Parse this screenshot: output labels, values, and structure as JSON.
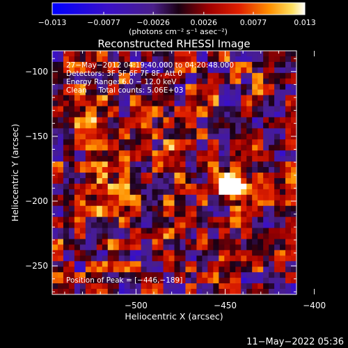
{
  "chart_data": {
    "type": "heatmap",
    "title": "Reconstructed RHESSI Image",
    "xlabel": "Heliocentric X (arcsec)",
    "ylabel": "Heliocentric Y (arcsec)",
    "xlim": [
      -547,
      -410
    ],
    "ylim": [
      -272,
      -84
    ],
    "x_ticks": [
      -500,
      -450,
      -400
    ],
    "x_tick_labels": [
      "−500",
      "−450",
      "−400"
    ],
    "y_ticks": [
      -100,
      -150,
      -200,
      -250
    ],
    "y_tick_labels": [
      "−100",
      "−150",
      "−200",
      "−250"
    ],
    "colorbar": {
      "range": [
        -0.013,
        0.013
      ],
      "ticks": [
        -0.013,
        -0.0077,
        -0.0026,
        0.0026,
        0.0077,
        0.013
      ],
      "tick_labels": [
        "−0.013",
        "−0.0077",
        "−0.0026",
        "0.0026",
        "0.0077",
        "0.013"
      ],
      "units": "(photons cm⁻² s⁻¹ asec⁻²)"
    },
    "annotations": [
      "27−May−2012 04:19:40.000 to 04:20:48.000",
      "Detectors: 3F 5F 6F 7F 8F, Att 0",
      "Energy Range: 6.0 − 12.0 keV",
      "Clean     Total counts: 5.06E+03"
    ],
    "peak_label": "Position of Peak = [−446,−189]",
    "peak": [
      -446,
      -189
    ],
    "grid": false,
    "colormap": "RHESSI (blue-purple negative, red-orange-yellow-white positive)"
  },
  "footer": {
    "timestamp": "11−May−2022 05:36"
  },
  "colors": {
    "background": "#000000",
    "foreground": "#ffffff"
  }
}
